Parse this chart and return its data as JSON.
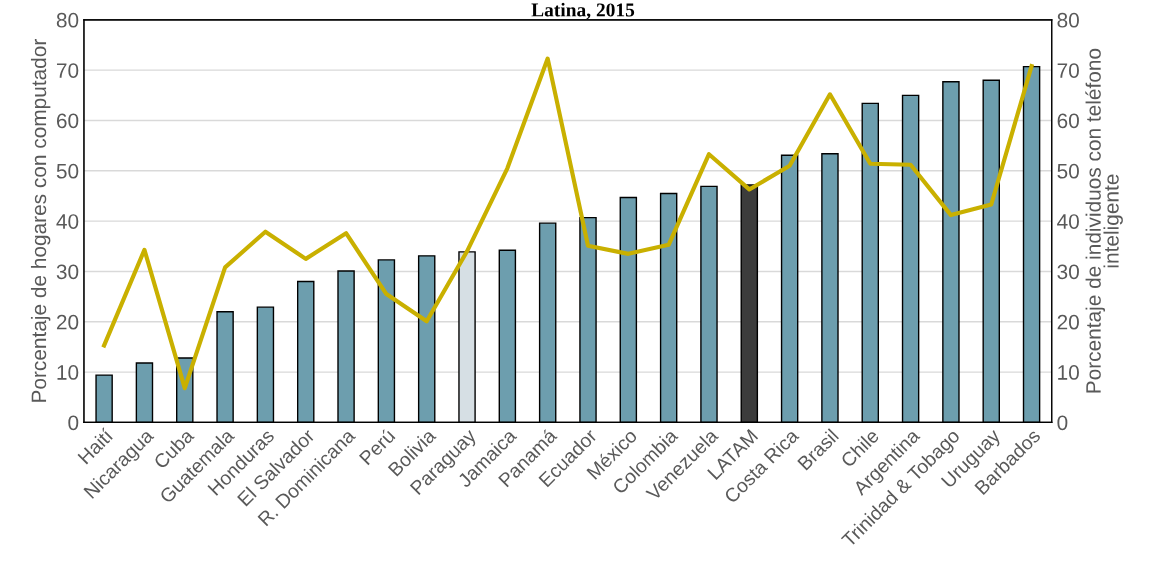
{
  "chart_data": {
    "type": "bar",
    "title": "Latina, 2015",
    "ylabel": "Porcentaje de hogares con computador",
    "y2label": "Porcentaje de individuos con teléfono\ninteligente",
    "categories": [
      "Haití",
      "Nicaragua",
      "Cuba",
      "Guatemala",
      "Honduras",
      "El Salvador",
      "R. Dominicana",
      "Perú",
      "Bolivia",
      "Paraguay",
      "Jamaica",
      "Panamá",
      "Ecuador",
      "México",
      "Colombia",
      "Venezuela",
      "LATAM",
      "Costa Rica",
      "Brasil",
      "Chile",
      "Argentina",
      "Trinidad & Tobago",
      "Uruguay",
      "Barbados"
    ],
    "series": [
      {
        "colors": [
          "#6d9eae",
          "#6d9eae",
          "#6d9eae",
          "#6d9eae",
          "#6d9eae",
          "#6d9eae",
          "#6d9eae",
          "#6d9eae",
          "#6d9eae",
          "#d6dfe4",
          "#6d9eae",
          "#6d9eae",
          "#6d9eae",
          "#6d9eae",
          "#6d9eae",
          "#6d9eae",
          "#3c3c3c",
          "#6d9eae",
          "#6d9eae",
          "#6d9eae",
          "#6d9eae",
          "#6d9eae",
          "#6d9eae",
          "#6d9eae"
        ],
        "values": [
          9.4,
          11.8,
          12.8,
          22,
          22.9,
          28,
          30.1,
          32.3,
          33.1,
          33.9,
          34.2,
          39.6,
          40.7,
          44.7,
          45.5,
          46.9,
          47.2,
          53.1,
          53.4,
          63.4,
          65,
          67.7,
          68,
          70.7
        ]
      },
      {
        "type": "line",
        "axis": "y2",
        "color": "#c9b000",
        "values": [
          15.3,
          34.3,
          6.8,
          30.8,
          37.9,
          32.5,
          37.6,
          25.5,
          20.1,
          34,
          50.5,
          72.3,
          35.1,
          33.5,
          35.3,
          53.3,
          46.3,
          51,
          65.2,
          51.4,
          51.2,
          41.2,
          43.3,
          70.8
        ]
      }
    ],
    "ylim": [
      0,
      80
    ],
    "yticks": [
      0,
      10,
      20,
      30,
      40,
      50,
      60,
      70,
      80
    ],
    "y2lim": [
      0,
      80
    ],
    "y2ticks": [
      0,
      10,
      20,
      30,
      40,
      50,
      60,
      70,
      80
    ],
    "grid": "y",
    "legend": false
  }
}
